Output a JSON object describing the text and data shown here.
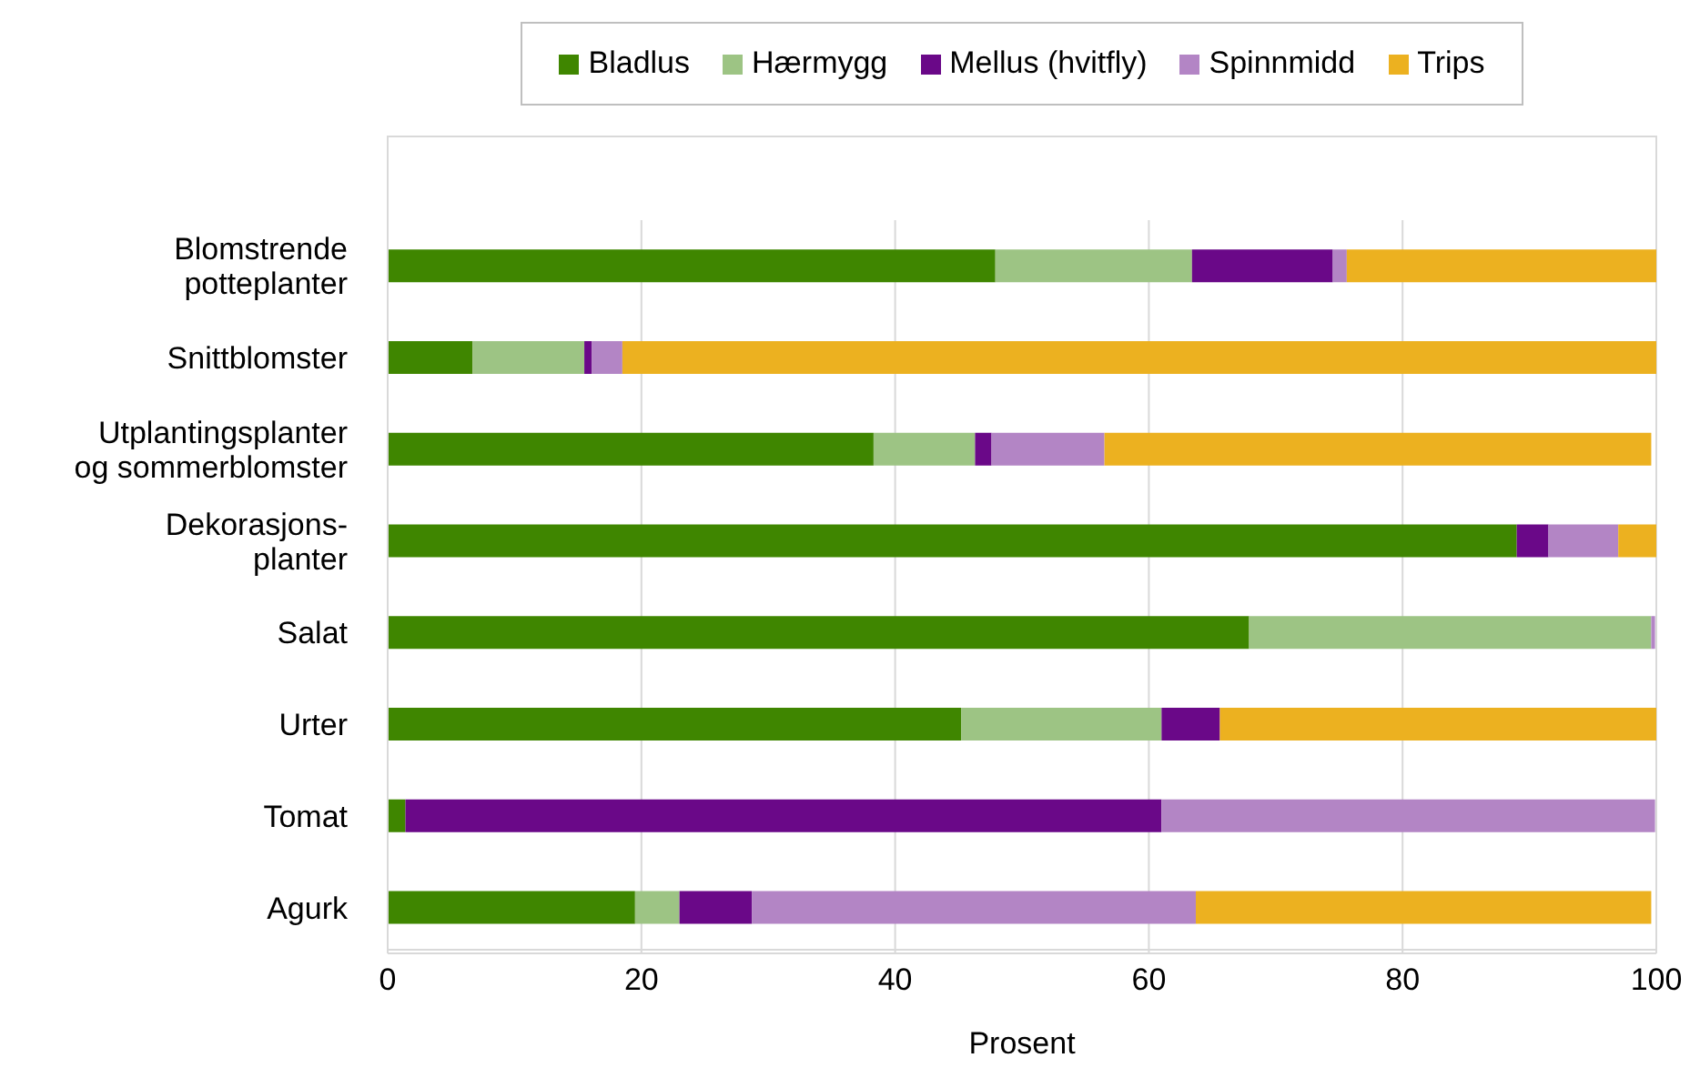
{
  "chart_data": {
    "type": "bar",
    "orientation": "horizontal",
    "stacked": true,
    "xlabel": "Prosent",
    "categories": [
      "Blomstrende\npotteplanter",
      "Snittblomster",
      "Utplantingsplanter\nog sommerblomster",
      "Dekorasjons-\nplanter",
      "Salat",
      "Urter",
      "Tomat",
      "Agurk"
    ],
    "series": [
      {
        "name": "Bladlus",
        "color": "#3f8600",
        "values": [
          47.9,
          6.7,
          38.3,
          89.0,
          67.9,
          45.2,
          1.4,
          19.5
        ]
      },
      {
        "name": "Hærmygg",
        "color": "#9dc484",
        "values": [
          15.5,
          8.8,
          8.0,
          0,
          31.7,
          15.8,
          0,
          3.5
        ]
      },
      {
        "name": "Mellus (hvitfly)",
        "color": "#6a0888",
        "values": [
          11.1,
          0.6,
          1.3,
          2.5,
          0,
          4.6,
          59.6,
          5.7
        ]
      },
      {
        "name": "Spinnmidd",
        "color": "#b385c5",
        "values": [
          1.1,
          2.4,
          8.9,
          5.5,
          0.3,
          0,
          38.9,
          35.0
        ]
      },
      {
        "name": "Trips",
        "color": "#ecb120",
        "values": [
          24.4,
          81.5,
          43.1,
          3.0,
          0,
          34.4,
          0,
          35.9
        ]
      }
    ],
    "xlim": [
      0,
      100
    ],
    "xticks": [
      0,
      20,
      40,
      60,
      80,
      100
    ],
    "grid": "x",
    "legend": "top"
  }
}
